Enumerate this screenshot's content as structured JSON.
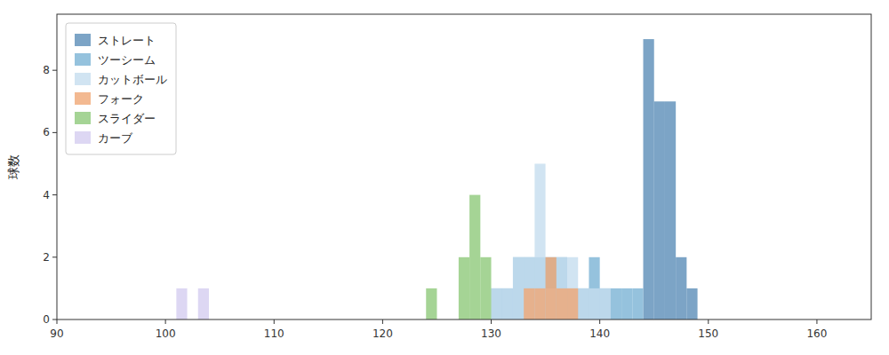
{
  "chart_data": {
    "type": "histogram",
    "ylabel": "球数",
    "xlim": [
      90,
      165
    ],
    "ylim": [
      0,
      9.8
    ],
    "xticks": [
      90,
      100,
      110,
      120,
      130,
      140,
      150,
      160
    ],
    "yticks": [
      0,
      2,
      4,
      6,
      8
    ],
    "grid": false,
    "legend": "upper left",
    "bins": [
      90,
      91,
      92,
      93,
      94,
      95,
      96,
      97,
      98,
      99,
      100,
      101,
      102,
      103,
      104,
      105,
      106,
      107,
      108,
      109,
      110,
      111,
      112,
      113,
      114,
      115,
      116,
      117,
      118,
      119,
      120,
      121,
      122,
      123,
      124,
      125,
      126,
      127,
      128,
      129,
      130,
      131,
      132,
      133,
      134,
      135,
      136,
      137,
      138,
      139,
      140,
      141,
      142,
      143,
      144,
      145,
      146,
      147,
      148,
      149,
      150,
      151,
      152,
      153,
      154,
      155,
      156,
      157,
      158,
      159,
      160,
      161,
      162,
      163,
      164,
      165
    ],
    "series": [
      {
        "name": "ストレート",
        "color": "#5b8db8",
        "values": [
          0,
          0,
          0,
          0,
          0,
          0,
          0,
          0,
          0,
          0,
          0,
          0,
          0,
          0,
          0,
          0,
          0,
          0,
          0,
          0,
          0,
          0,
          0,
          0,
          0,
          0,
          0,
          0,
          0,
          0,
          0,
          0,
          0,
          0,
          0,
          0,
          0,
          0,
          0,
          0,
          0,
          0,
          0,
          0,
          0,
          0,
          0,
          0,
          0,
          0,
          0,
          0,
          0,
          0,
          9,
          7,
          7,
          2,
          1,
          0,
          0,
          0,
          0,
          0,
          0,
          0,
          0,
          0,
          0,
          0,
          0,
          0,
          0,
          0,
          0
        ]
      },
      {
        "name": "ツーシーム",
        "color": "#7ab3d4",
        "values": [
          0,
          0,
          0,
          0,
          0,
          0,
          0,
          0,
          0,
          0,
          0,
          0,
          0,
          0,
          0,
          0,
          0,
          0,
          0,
          0,
          0,
          0,
          0,
          0,
          0,
          0,
          0,
          0,
          0,
          0,
          0,
          0,
          0,
          0,
          0,
          0,
          0,
          0,
          0,
          0,
          1,
          1,
          2,
          2,
          2,
          2,
          2,
          1,
          1,
          2,
          1,
          1,
          1,
          1,
          0,
          0,
          0,
          0,
          0,
          0,
          0,
          0,
          0,
          0,
          0,
          0,
          0,
          0,
          0,
          0,
          0,
          0,
          0,
          0,
          0
        ]
      },
      {
        "name": "カットボール",
        "color": "#c5ddef",
        "values": [
          0,
          0,
          0,
          0,
          0,
          0,
          0,
          0,
          0,
          0,
          0,
          0,
          0,
          0,
          0,
          0,
          0,
          0,
          0,
          0,
          0,
          0,
          0,
          0,
          0,
          0,
          0,
          0,
          0,
          0,
          0,
          0,
          0,
          0,
          0,
          0,
          0,
          0,
          0,
          0,
          1,
          1,
          2,
          2,
          5,
          1,
          2,
          2,
          1,
          1,
          1,
          0,
          0,
          0,
          0,
          0,
          0,
          0,
          0,
          0,
          0,
          0,
          0,
          0,
          0,
          0,
          0,
          0,
          0,
          0,
          0,
          0,
          0,
          0,
          0
        ]
      },
      {
        "name": "フォーク",
        "color": "#f0a875",
        "values": [
          0,
          0,
          0,
          0,
          0,
          0,
          0,
          0,
          0,
          0,
          0,
          0,
          0,
          0,
          0,
          0,
          0,
          0,
          0,
          0,
          0,
          0,
          0,
          0,
          0,
          0,
          0,
          0,
          0,
          0,
          0,
          0,
          0,
          0,
          0,
          0,
          0,
          0,
          0,
          0,
          0,
          0,
          0,
          1,
          1,
          2,
          1,
          1,
          0,
          0,
          0,
          0,
          0,
          0,
          0,
          0,
          0,
          0,
          0,
          0,
          0,
          0,
          0,
          0,
          0,
          0,
          0,
          0,
          0,
          0,
          0,
          0,
          0,
          0,
          0
        ]
      },
      {
        "name": "スライダー",
        "color": "#8ec97a",
        "values": [
          0,
          0,
          0,
          0,
          0,
          0,
          0,
          0,
          0,
          0,
          0,
          0,
          0,
          0,
          0,
          0,
          0,
          0,
          0,
          0,
          0,
          0,
          0,
          0,
          0,
          0,
          0,
          0,
          0,
          0,
          0,
          0,
          0,
          0,
          1,
          0,
          0,
          2,
          4,
          2,
          0,
          0,
          0,
          0,
          0,
          0,
          0,
          0,
          0,
          0,
          0,
          0,
          0,
          0,
          0,
          0,
          0,
          0,
          0,
          0,
          0,
          0,
          0,
          0,
          0,
          0,
          0,
          0,
          0,
          0,
          0,
          0,
          0,
          0,
          0
        ]
      },
      {
        "name": "カーブ",
        "color": "#d4cdf0",
        "values": [
          0,
          0,
          0,
          0,
          0,
          0,
          0,
          0,
          0,
          0,
          0,
          1,
          0,
          1,
          0,
          0,
          0,
          0,
          0,
          0,
          0,
          0,
          0,
          0,
          0,
          0,
          0,
          0,
          0,
          0,
          0,
          0,
          0,
          0,
          0,
          0,
          0,
          0,
          0,
          0,
          0,
          0,
          0,
          0,
          0,
          0,
          0,
          0,
          0,
          0,
          0,
          0,
          0,
          0,
          0,
          0,
          0,
          0,
          0,
          0,
          0,
          0,
          0,
          0,
          0,
          0,
          0,
          0,
          0,
          0,
          0,
          0,
          0,
          0,
          0
        ]
      }
    ]
  }
}
